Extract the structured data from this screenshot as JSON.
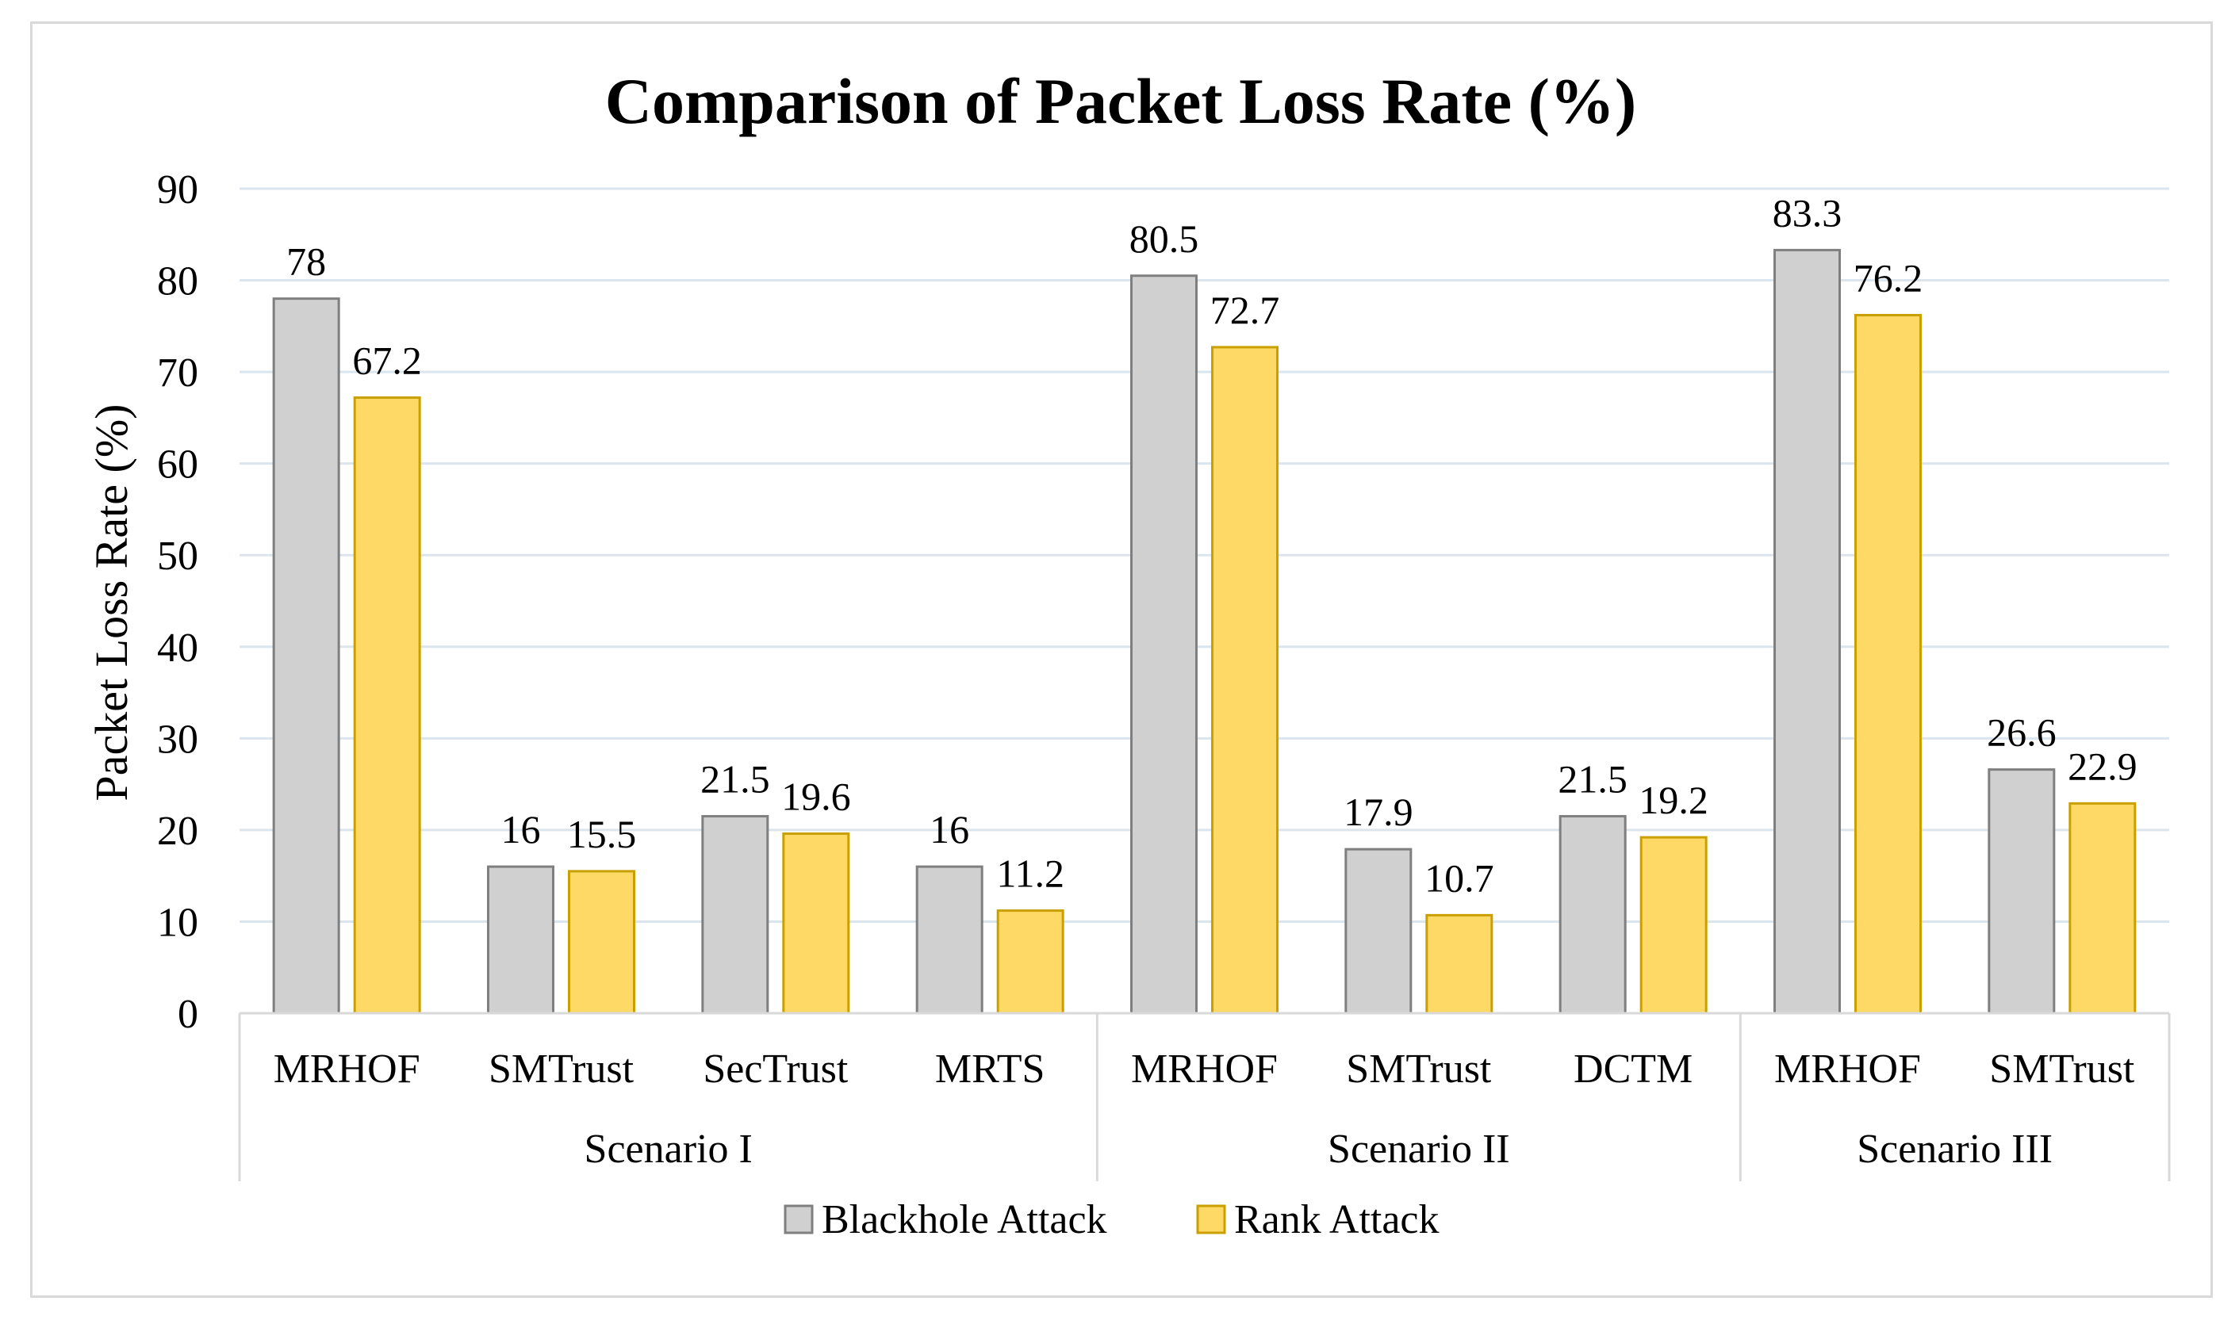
{
  "chart_data": {
    "type": "bar",
    "title": "Comparison of Packet Loss Rate (%)",
    "xlabel": "",
    "ylabel": "Packet Loss Rate (%)",
    "ylim": [
      0,
      90
    ],
    "yticks": [
      0,
      10,
      20,
      30,
      40,
      50,
      60,
      70,
      80,
      90
    ],
    "grid": true,
    "legend_position": "bottom",
    "groups": [
      {
        "name": "Scenario I",
        "categories": [
          "MRHOF",
          "SMTrust",
          "SecTrust",
          "MRTS"
        ]
      },
      {
        "name": "Scenario II",
        "categories": [
          "MRHOF",
          "SMTrust",
          "DCTM"
        ]
      },
      {
        "name": "Scenario III",
        "categories": [
          "MRHOF",
          "SMTrust"
        ]
      }
    ],
    "series": [
      {
        "name": "Blackhole Attack",
        "color": "#d0d0d0",
        "stroke": "#7f7f7f",
        "values": [
          78,
          16,
          21.5,
          16,
          80.5,
          17.9,
          21.5,
          83.3,
          26.6
        ]
      },
      {
        "name": "Rank Attack",
        "color": "#ffd966",
        "stroke": "#c9a000",
        "values": [
          67.2,
          15.5,
          19.6,
          11.2,
          72.7,
          10.7,
          19.2,
          76.2,
          22.9
        ]
      }
    ]
  }
}
